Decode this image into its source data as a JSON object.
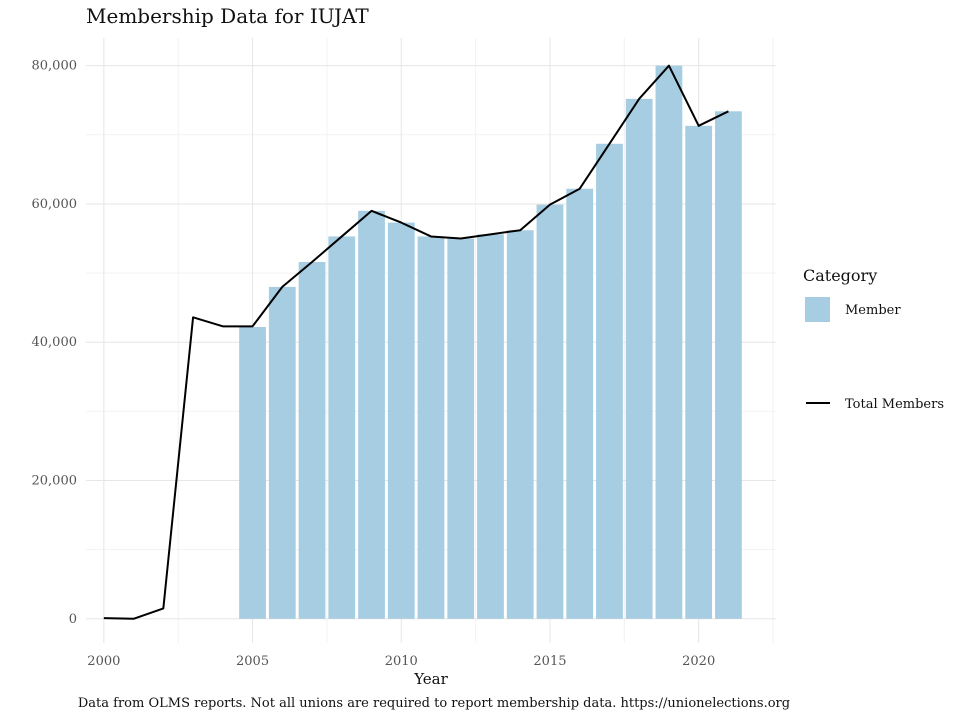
{
  "chart_data": {
    "type": "bar",
    "title": "Membership Data for IUJAT",
    "xlabel": "Year",
    "ylabel": "",
    "xlim": [
      1999.4,
      2022.6
    ],
    "ylim": [
      -3500,
      84000
    ],
    "x_ticks": [
      2000,
      2005,
      2010,
      2015,
      2020
    ],
    "x_tick_labels": [
      "2000",
      "2005",
      "2010",
      "2015",
      "2020"
    ],
    "y_ticks": [
      0,
      20000,
      40000,
      60000,
      80000
    ],
    "y_tick_labels": [
      "0",
      "20,000",
      "40,000",
      "60,000",
      "80,000"
    ],
    "grid": true,
    "legend_position": "right",
    "legend_title": "Category",
    "caption": "Data from OLMS reports. Not all unions are required to report membership data. https://unionelections.org",
    "bar_series": {
      "name": "Member",
      "color": "#a6cde2",
      "x": [
        2005,
        2006,
        2007,
        2008,
        2009,
        2010,
        2011,
        2012,
        2013,
        2014,
        2015,
        2016,
        2017,
        2018,
        2019,
        2020,
        2021
      ],
      "values": [
        42200,
        48000,
        51600,
        55300,
        59000,
        57300,
        55300,
        55000,
        55600,
        56200,
        59900,
        62200,
        68700,
        75200,
        80000,
        71300,
        73400
      ]
    },
    "line_series": {
      "name": "Total Members",
      "color": "#000000",
      "x": [
        2000,
        2001,
        2002,
        2003,
        2004,
        2005,
        2006,
        2007,
        2008,
        2009,
        2010,
        2011,
        2012,
        2013,
        2014,
        2015,
        2016,
        2017,
        2018,
        2019,
        2020,
        2021
      ],
      "values": [
        100,
        0,
        1500,
        43600,
        42300,
        42300,
        48000,
        51600,
        55300,
        59000,
        57300,
        55300,
        55000,
        55600,
        56200,
        59900,
        62200,
        68700,
        75200,
        80000,
        71300,
        73400
      ]
    }
  }
}
